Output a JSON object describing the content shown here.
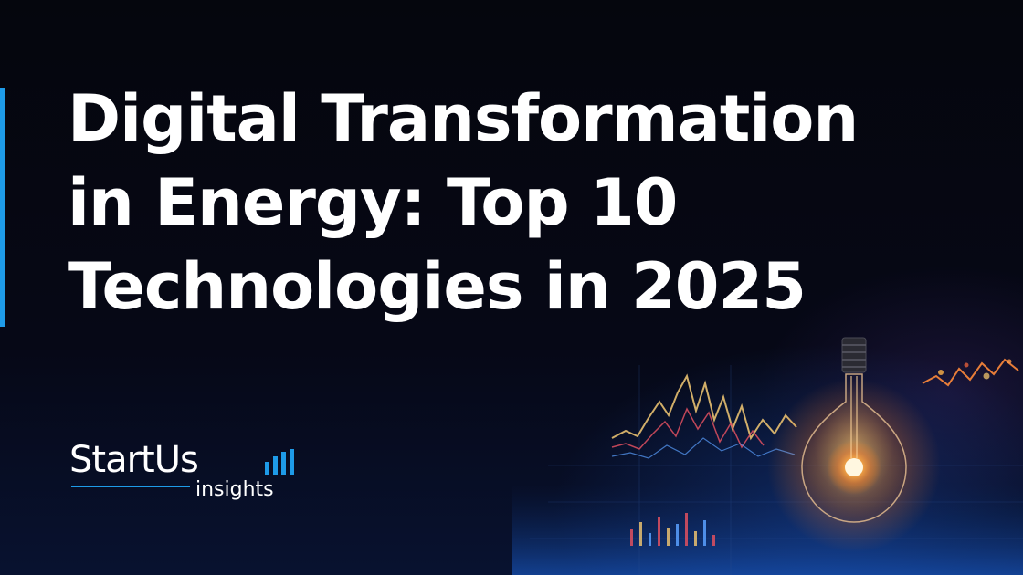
{
  "headline": {
    "line1": "Digital Transformation",
    "line2": "in Energy: Top 10",
    "line3": "Technologies in 2025"
  },
  "logo": {
    "wordmark": "StartUs",
    "subtitle": "insights"
  },
  "colors": {
    "accent": "#1e9be8",
    "background": "#05060d",
    "text": "#ffffff",
    "bulb_glow": "#ff9a2e"
  },
  "icons": {
    "logo_mark": "signal-bars-icon",
    "illustration": "light-bulb-icon"
  }
}
